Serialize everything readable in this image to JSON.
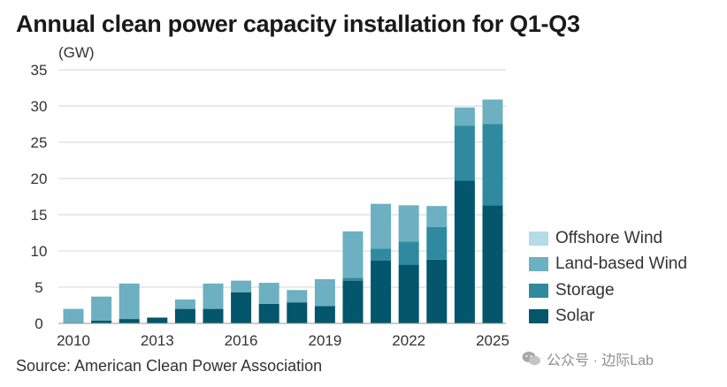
{
  "title": "Annual clean power capacity installation for Q1-Q3",
  "unit_label": "(GW)",
  "source": "Source: American Clean Power Association",
  "watermark": "公众号 · 边际Lab",
  "colors": {
    "Offshore Wind": "#b4dce6",
    "Land-based Wind": "#6cb0c2",
    "Storage": "#2f8aa0",
    "Solar": "#03566b",
    "grid": "#d6d6d6",
    "axis": "#999999"
  },
  "chart_data": {
    "type": "bar",
    "stacked": true,
    "title": "Annual clean power capacity installation for Q1-Q3",
    "ylabel": "(GW)",
    "xlabel": "",
    "ylim": [
      0,
      35
    ],
    "yticks": [
      0,
      5,
      10,
      15,
      20,
      25,
      30,
      35
    ],
    "xtick_labels": [
      "2010",
      "2013",
      "2016",
      "2019",
      "2022",
      "2025"
    ],
    "grid": true,
    "legend_position": "right",
    "categories": [
      "2010",
      "2011",
      "2012",
      "2013",
      "2014",
      "2015",
      "2016",
      "2017",
      "2018",
      "2019",
      "2020",
      "2021",
      "2022",
      "2023",
      "2024",
      "2025"
    ],
    "series": [
      {
        "name": "Solar",
        "values": [
          0.1,
          0.4,
          0.6,
          0.8,
          2.0,
          2.0,
          4.3,
          2.7,
          2.9,
          2.4,
          5.9,
          8.7,
          8.1,
          8.8,
          19.7,
          16.3
        ]
      },
      {
        "name": "Storage",
        "values": [
          0.0,
          0.0,
          0.0,
          0.0,
          0.0,
          0.0,
          0.0,
          0.0,
          0.0,
          0.0,
          0.4,
          1.6,
          3.2,
          4.5,
          7.6,
          11.2
        ]
      },
      {
        "name": "Land-based Wind",
        "values": [
          1.9,
          3.3,
          4.9,
          0.0,
          1.3,
          3.5,
          1.6,
          2.9,
          1.7,
          3.7,
          6.4,
          6.2,
          5.0,
          2.9,
          2.5,
          3.4
        ]
      },
      {
        "name": "Offshore Wind",
        "values": [
          0.0,
          0.0,
          0.0,
          0.0,
          0.0,
          0.0,
          0.0,
          0.0,
          0.0,
          0.0,
          0.0,
          0.0,
          0.0,
          0.0,
          0.0,
          0.0
        ]
      }
    ]
  },
  "legend": [
    "Offshore Wind",
    "Land-based Wind",
    "Storage",
    "Solar"
  ]
}
